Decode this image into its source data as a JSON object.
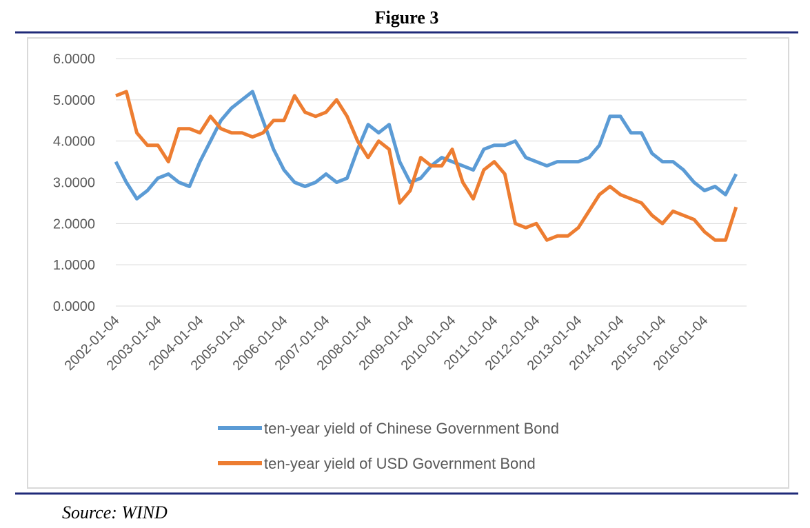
{
  "chart_data": {
    "type": "line",
    "title": "Figure 3",
    "source": "Source: WIND",
    "categories": [
      "2002-01-04",
      null,
      null,
      null,
      "2003-01-04",
      null,
      null,
      null,
      "2004-01-04",
      null,
      null,
      null,
      "2005-01-04",
      null,
      null,
      null,
      "2006-01-04",
      null,
      null,
      null,
      "2007-01-04",
      null,
      null,
      null,
      "2008-01-04",
      null,
      null,
      null,
      "2009-01-04",
      null,
      null,
      null,
      "2010-01-04",
      null,
      null,
      null,
      "2011-01-04",
      null,
      null,
      null,
      "2012-01-04",
      null,
      null,
      null,
      "2013-01-04",
      null,
      null,
      null,
      "2014-01-04",
      null,
      null,
      null,
      "2015-01-04",
      null,
      null,
      null,
      "2016-01-04",
      null,
      null,
      null
    ],
    "series": [
      {
        "name": "ten-year yield of Chinese Government Bond",
        "color": "#5b9bd5",
        "values": [
          3.5,
          3.0,
          2.6,
          2.8,
          3.1,
          3.2,
          3.0,
          2.9,
          3.5,
          4.0,
          4.5,
          4.8,
          5.0,
          5.2,
          4.5,
          3.8,
          3.3,
          3.0,
          2.9,
          3.0,
          3.2,
          3.0,
          3.1,
          3.8,
          4.4,
          4.2,
          4.4,
          3.5,
          3.0,
          3.1,
          3.4,
          3.6,
          3.5,
          3.4,
          3.3,
          3.8,
          3.9,
          3.9,
          4.0,
          3.6,
          3.5,
          3.4,
          3.5,
          3.5,
          3.5,
          3.6,
          3.9,
          4.6,
          4.6,
          4.2,
          4.2,
          3.7,
          3.5,
          3.5,
          3.3,
          3.0,
          2.8,
          2.9,
          2.7,
          3.2
        ]
      },
      {
        "name": "ten-year yield of USD Government Bond",
        "color": "#ed7d31",
        "values": [
          5.1,
          5.2,
          4.2,
          3.9,
          3.9,
          3.5,
          4.3,
          4.3,
          4.2,
          4.6,
          4.3,
          4.2,
          4.2,
          4.1,
          4.2,
          4.5,
          4.5,
          5.1,
          4.7,
          4.6,
          4.7,
          5.0,
          4.6,
          4.0,
          3.6,
          4.0,
          3.8,
          2.5,
          2.8,
          3.6,
          3.4,
          3.4,
          3.8,
          3.0,
          2.6,
          3.3,
          3.5,
          3.2,
          2.0,
          1.9,
          2.0,
          1.6,
          1.7,
          1.7,
          1.9,
          2.3,
          2.7,
          2.9,
          2.7,
          2.6,
          2.5,
          2.2,
          2.0,
          2.3,
          2.2,
          2.1,
          1.8,
          1.6,
          1.6,
          2.4
        ]
      }
    ],
    "ylim": [
      0,
      6
    ],
    "yticks": [
      {
        "value": 0,
        "label": "0.0000"
      },
      {
        "value": 1,
        "label": "1.0000"
      },
      {
        "value": 2,
        "label": "2.0000"
      },
      {
        "value": 3,
        "label": "3.0000"
      },
      {
        "value": 4,
        "label": "4.0000"
      },
      {
        "value": 5,
        "label": "5.0000"
      },
      {
        "value": 6,
        "label": "6.0000"
      }
    ],
    "grid": true,
    "legend": "bottom"
  }
}
